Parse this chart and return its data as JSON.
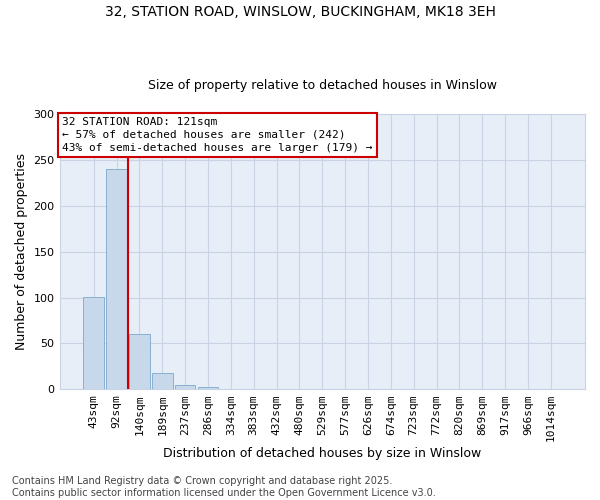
{
  "title_line1": "32, STATION ROAD, WINSLOW, BUCKINGHAM, MK18 3EH",
  "title_line2": "Size of property relative to detached houses in Winslow",
  "xlabel": "Distribution of detached houses by size in Winslow",
  "ylabel": "Number of detached properties",
  "bin_labels": [
    "43sqm",
    "92sqm",
    "140sqm",
    "189sqm",
    "237sqm",
    "286sqm",
    "334sqm",
    "383sqm",
    "432sqm",
    "480sqm",
    "529sqm",
    "577sqm",
    "626sqm",
    "674sqm",
    "723sqm",
    "772sqm",
    "820sqm",
    "869sqm",
    "917sqm",
    "966sqm",
    "1014sqm"
  ],
  "bar_values": [
    101,
    240,
    60,
    18,
    5,
    2,
    0,
    0,
    0,
    0,
    0,
    0,
    0,
    0,
    0,
    0,
    0,
    0,
    0,
    0,
    0
  ],
  "bar_color": "#c8d8eb",
  "bar_edgecolor": "#88b0d0",
  "vline_x": 1.5,
  "annotation_line1": "32 STATION ROAD: 121sqm",
  "annotation_line2": "← 57% of detached houses are smaller (242)",
  "annotation_line3": "43% of semi-detached houses are larger (179) →",
  "annotation_box_color": "#ffffff",
  "annotation_box_edgecolor": "#cc0000",
  "vline_color": "#cc0000",
  "ylim": [
    0,
    300
  ],
  "yticks": [
    0,
    50,
    100,
    150,
    200,
    250,
    300
  ],
  "grid_color": "#c8d4e4",
  "bg_color": "#e8eef8",
  "footnote": "Contains HM Land Registry data © Crown copyright and database right 2025.\nContains public sector information licensed under the Open Government Licence v3.0.",
  "footnote_fontsize": 7,
  "title1_fontsize": 10,
  "title2_fontsize": 9,
  "xlabel_fontsize": 9,
  "ylabel_fontsize": 9,
  "tick_fontsize": 8,
  "annot_fontsize": 8
}
